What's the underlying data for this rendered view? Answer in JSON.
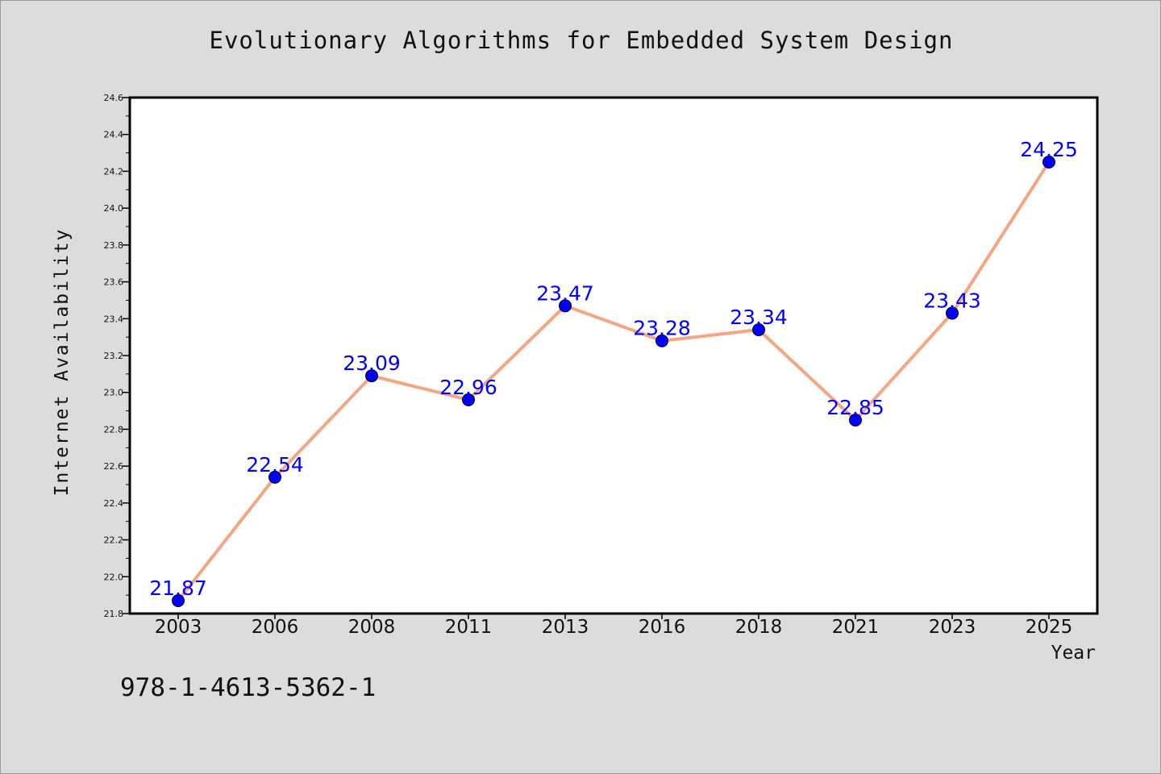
{
  "chart_data": {
    "type": "line",
    "title": "Evolutionary Algorithms for Embedded System Design",
    "xlabel": "Year",
    "ylabel": "Internet Availability",
    "categories": [
      "2003",
      "2006",
      "2008",
      "2011",
      "2013",
      "2016",
      "2018",
      "2021",
      "2023",
      "2025"
    ],
    "series": [
      {
        "values": [
          21.87,
          22.54,
          23.09,
          22.96,
          23.47,
          23.28,
          23.34,
          22.85,
          23.43,
          24.25
        ],
        "line_color": "#f4a582",
        "marker_color": "#0000ff"
      }
    ],
    "data_labels": [
      "21.87",
      "22.54",
      "23.09",
      "22.96",
      "23.47",
      "23.28",
      "23.34",
      "22.85",
      "23.43",
      "24.25"
    ],
    "ylim": [
      21.8,
      24.6
    ],
    "yticks": [
      "21.8",
      "22.0",
      "22.2",
      "22.4",
      "22.6",
      "22.8",
      "23.0",
      "23.2",
      "23.4",
      "23.6",
      "23.8",
      "24.0",
      "24.2",
      "24.4",
      "24.6"
    ],
    "grid": false,
    "legend": "none"
  },
  "footer": {
    "isbn": "978-1-4613-5362-1"
  }
}
